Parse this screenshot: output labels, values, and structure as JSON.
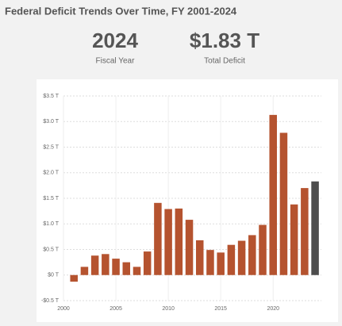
{
  "header": {
    "title": "Federal Deficit Trends Over Time, FY 2001-2024"
  },
  "kpis": [
    {
      "value": "2024",
      "label": "Fiscal Year"
    },
    {
      "value": "$1.83 T",
      "label": "Total Deficit"
    }
  ],
  "chart_data": {
    "type": "bar",
    "x": [
      2001,
      2002,
      2003,
      2004,
      2005,
      2006,
      2007,
      2008,
      2009,
      2010,
      2011,
      2012,
      2013,
      2014,
      2015,
      2016,
      2017,
      2018,
      2019,
      2020,
      2021,
      2022,
      2023,
      2024
    ],
    "values": [
      -0.13,
      0.16,
      0.38,
      0.41,
      0.32,
      0.25,
      0.16,
      0.46,
      1.41,
      1.29,
      1.3,
      1.08,
      0.68,
      0.49,
      0.44,
      0.59,
      0.67,
      0.78,
      0.98,
      3.13,
      2.78,
      1.38,
      1.7,
      1.83
    ],
    "colors": [
      "#b5532f",
      "#b5532f",
      "#b5532f",
      "#b5532f",
      "#b5532f",
      "#b5532f",
      "#b5532f",
      "#b5532f",
      "#b5532f",
      "#b5532f",
      "#b5532f",
      "#b5532f",
      "#b5532f",
      "#b5532f",
      "#b5532f",
      "#b5532f",
      "#b5532f",
      "#b5532f",
      "#b5532f",
      "#b5532f",
      "#b5532f",
      "#b5532f",
      "#b5532f",
      "#4d4d4d"
    ],
    "xlim": [
      2000,
      2024.6
    ],
    "xticks": [
      2000,
      2005,
      2010,
      2015,
      2020
    ],
    "ylim": [
      -0.5,
      3.5
    ],
    "yticks": [
      {
        "value": -0.5,
        "label": "-$0.5 T"
      },
      {
        "value": 0,
        "label": "$0 T"
      },
      {
        "value": 0.5,
        "label": "$0.5 T"
      },
      {
        "value": 1,
        "label": "$1.0 T"
      },
      {
        "value": 1.5,
        "label": "$1.5 T"
      },
      {
        "value": 2,
        "label": "$2.0 T"
      },
      {
        "value": 2.5,
        "label": "$2.5 T"
      },
      {
        "value": 3,
        "label": "$3.0 T"
      },
      {
        "value": 3.5,
        "label": "$3.5 T"
      }
    ],
    "grid": true
  }
}
